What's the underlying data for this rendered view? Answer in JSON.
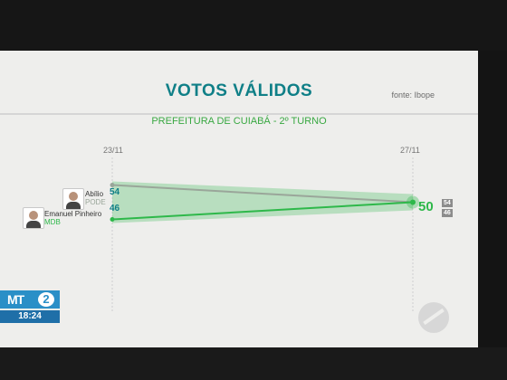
{
  "header": {
    "title": "VOTOS VÁLIDOS",
    "source": "fonte: Ibope",
    "subtitle": "PREFEITURA DE CUIABÁ - 2º TURNO"
  },
  "broadcast": {
    "logo": "MT",
    "logo_number": "2",
    "time": "18:24"
  },
  "colors": {
    "teal": "#0f7f87",
    "green": "#2eb84a",
    "logo_blue": "#2a8fc7"
  },
  "chart_data": {
    "type": "line",
    "x": [
      "23/11",
      "27/11"
    ],
    "ylim": [
      40,
      60
    ],
    "series": [
      {
        "name": "Abílio",
        "party": "PODE",
        "values": [
          54,
          50
        ],
        "color": "#9aa69a"
      },
      {
        "name": "Emanuel Pinheiro",
        "party": "MDB",
        "values": [
          46,
          50
        ],
        "color": "#2eb84a"
      }
    ],
    "end_label": "50",
    "end_values": [
      "54",
      "46"
    ]
  }
}
